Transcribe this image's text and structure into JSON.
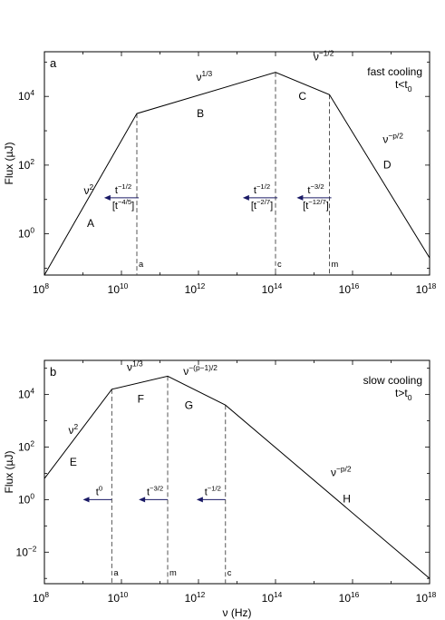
{
  "chart_data": [
    {
      "type": "line",
      "panel_label": "a",
      "title": "",
      "note_line1": "fast cooling",
      "note_line2": {
        "base": "t<t",
        "sub": "0"
      },
      "ylabel": "Flux (µJ)",
      "xlabel": "",
      "x_scale": "log",
      "y_scale": "log",
      "xlim_exp": [
        8,
        18
      ],
      "ylim_exp": [
        -1.2,
        5.3
      ],
      "x_ticks": [
        {
          "base": "10",
          "exp": "8"
        },
        {
          "base": "10",
          "exp": "10"
        },
        {
          "base": "10",
          "exp": "12"
        },
        {
          "base": "10",
          "exp": "14"
        },
        {
          "base": "10",
          "exp": "16"
        },
        {
          "base": "10",
          "exp": "18"
        }
      ],
      "y_ticks": [
        {
          "base": "10",
          "exp": "0",
          "v": 0
        },
        {
          "base": "10",
          "exp": "2",
          "v": 2
        },
        {
          "base": "10",
          "exp": "4",
          "v": 4
        }
      ],
      "points_log": [
        [
          8,
          -1.2
        ],
        [
          10.4,
          3.5
        ],
        [
          14,
          4.7
        ],
        [
          15.4,
          4.05
        ],
        [
          18,
          -0.7
        ]
      ],
      "breaks": [
        {
          "x": 10.4,
          "name": "ν",
          "sub": "a"
        },
        {
          "x": 14,
          "name": "ν",
          "sub": "c"
        },
        {
          "x": 15.4,
          "name": "ν",
          "sub": "m"
        }
      ],
      "slopes": [
        {
          "x": 9.15,
          "y": 1.15,
          "base": "ν",
          "exp": "2"
        },
        {
          "x": 12.15,
          "y": 4.45,
          "base": "ν",
          "exp": "1/3"
        },
        {
          "x": 15.25,
          "y": 5.05,
          "base": "ν",
          "exp": "−1/2"
        },
        {
          "x": 17.05,
          "y": 2.65,
          "base": "ν",
          "exp": "−p/2"
        }
      ],
      "regions": [
        {
          "x": 9.2,
          "y": 0.2,
          "label": "A"
        },
        {
          "x": 12.05,
          "y": 3.4,
          "label": "B"
        },
        {
          "x": 14.7,
          "y": 3.9,
          "label": "C"
        },
        {
          "x": 16.9,
          "y": 1.9,
          "label": "D"
        }
      ],
      "arrows": [
        {
          "x_from": 10.45,
          "x_to": 9.55,
          "y": 1.05,
          "top": {
            "base": "t",
            "exp": "−1/2"
          },
          "bottom": {
            "base": "[t",
            "exp": "−4/5",
            "close": "]"
          }
        },
        {
          "x_from": 14.05,
          "x_to": 13.15,
          "y": 1.05,
          "top": {
            "base": "t",
            "exp": "−1/2"
          },
          "bottom": {
            "base": "[t",
            "exp": "−2/7",
            "close": "]"
          }
        },
        {
          "x_from": 15.45,
          "x_to": 14.55,
          "y": 1.05,
          "top": {
            "base": "t",
            "exp": "−3/2"
          },
          "bottom": {
            "base": "[t",
            "exp": "−12/7",
            "close": "]"
          }
        }
      ]
    },
    {
      "type": "line",
      "panel_label": "b",
      "title": "",
      "note_line1": "slow cooling",
      "note_line2": {
        "base": "t>t",
        "sub": "0"
      },
      "ylabel": "Flux (µJ)",
      "xlabel": "ν (Hz)",
      "x_scale": "log",
      "y_scale": "log",
      "xlim_exp": [
        8,
        18
      ],
      "ylim_exp": [
        -3.2,
        5.3
      ],
      "x_ticks": [
        {
          "base": "10",
          "exp": "8"
        },
        {
          "base": "10",
          "exp": "10"
        },
        {
          "base": "10",
          "exp": "12"
        },
        {
          "base": "10",
          "exp": "14"
        },
        {
          "base": "10",
          "exp": "16"
        },
        {
          "base": "10",
          "exp": "18"
        }
      ],
      "y_ticks": [
        {
          "base": "10",
          "exp": "−2",
          "v": -2
        },
        {
          "base": "10",
          "exp": "0",
          "v": 0
        },
        {
          "base": "10",
          "exp": "2",
          "v": 2
        },
        {
          "base": "10",
          "exp": "4",
          "v": 4
        }
      ],
      "points_log": [
        [
          8,
          0.8
        ],
        [
          9.75,
          4.2
        ],
        [
          11.2,
          4.7
        ],
        [
          12.7,
          3.6
        ],
        [
          18,
          -3.0
        ]
      ],
      "breaks": [
        {
          "x": 9.75,
          "name": "ν",
          "sub": "a"
        },
        {
          "x": 11.2,
          "name": "ν",
          "sub": "m"
        },
        {
          "x": 12.7,
          "name": "ν",
          "sub": "c"
        }
      ],
      "slopes": [
        {
          "x": 8.75,
          "y": 2.5,
          "base": "ν",
          "exp": "2"
        },
        {
          "x": 10.35,
          "y": 4.9,
          "base": "ν",
          "exp": "1/3"
        },
        {
          "x": 12.05,
          "y": 4.75,
          "base": "ν",
          "exp": "−(p−1)/2"
        },
        {
          "x": 15.7,
          "y": 0.9,
          "base": "ν",
          "exp": "−p/2"
        }
      ],
      "regions": [
        {
          "x": 8.75,
          "y": 1.3,
          "label": "E"
        },
        {
          "x": 10.5,
          "y": 3.7,
          "label": "F"
        },
        {
          "x": 11.75,
          "y": 3.45,
          "label": "G"
        },
        {
          "x": 15.85,
          "y": -0.1,
          "label": "H"
        }
      ],
      "arrows": [
        {
          "x_from": 9.75,
          "x_to": 9.0,
          "y": 0.0,
          "top": {
            "base": "t",
            "exp": "0"
          }
        },
        {
          "x_from": 11.2,
          "x_to": 10.45,
          "y": 0.0,
          "top": {
            "base": "t",
            "exp": "−3/2"
          }
        },
        {
          "x_from": 12.7,
          "x_to": 11.95,
          "y": 0.0,
          "top": {
            "base": "t",
            "exp": "−1/2"
          }
        }
      ]
    }
  ]
}
